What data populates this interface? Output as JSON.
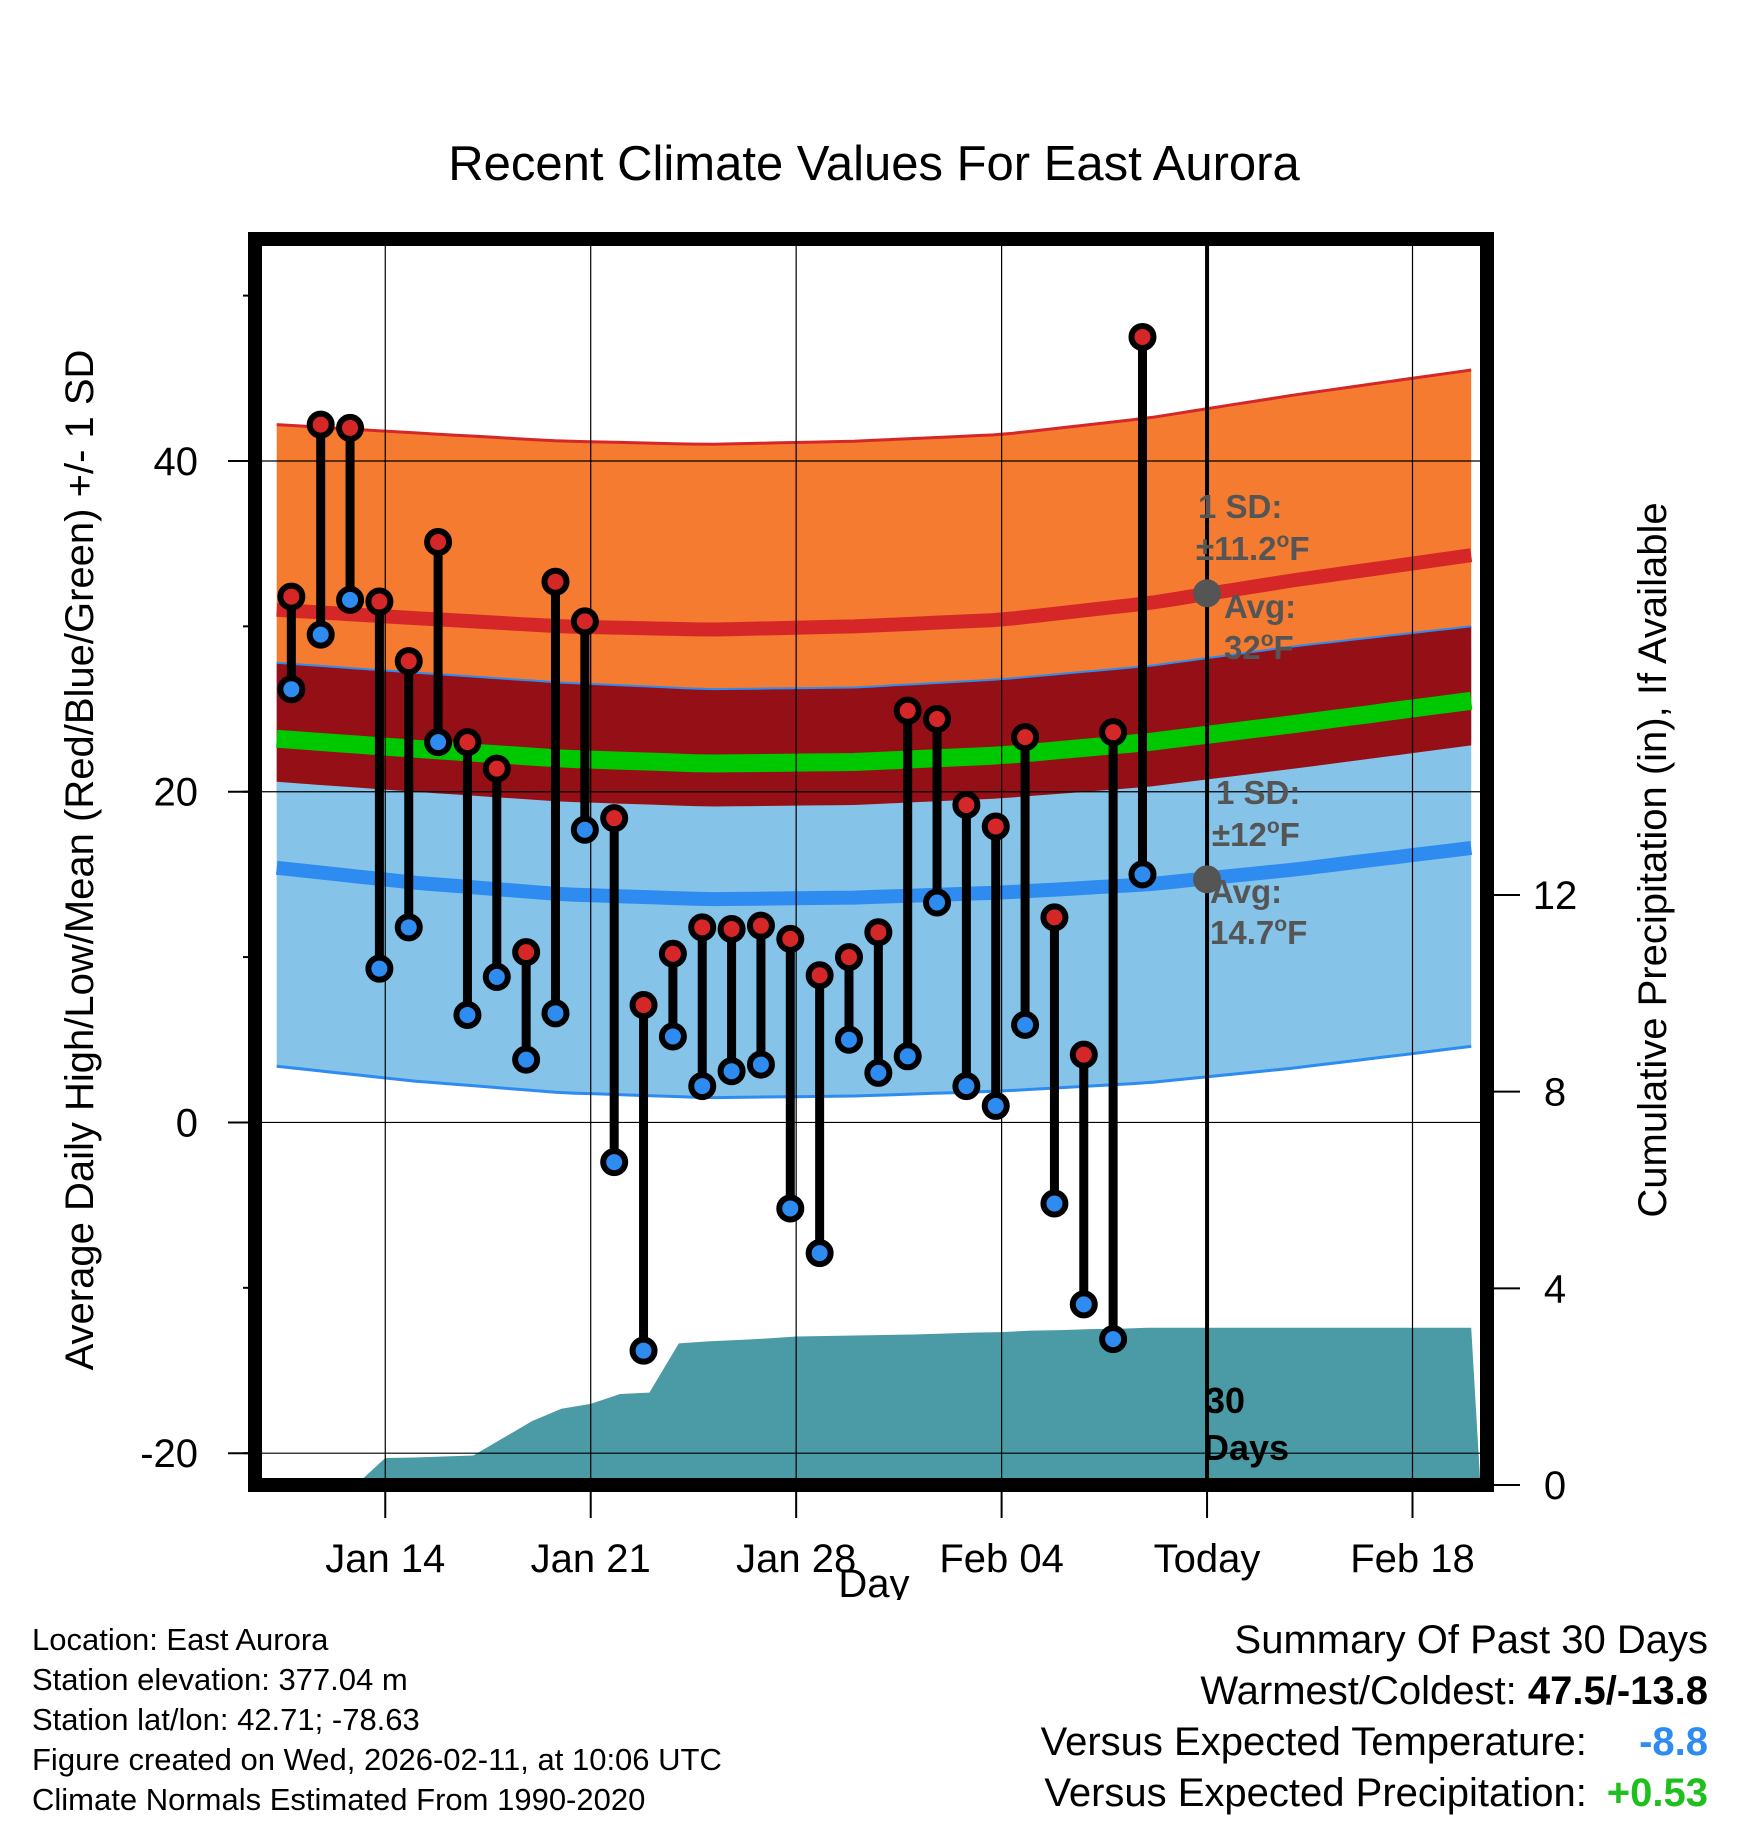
{
  "chart_data": {
    "type": "dumbbell-range",
    "title": "Recent Climate Values For East Aurora",
    "xlabel": "Day",
    "ylabel_left": "Average Daily High/Low/Mean (Red/Blue/Green) +/- 1 SD",
    "ylabel_right": "Cumulative Precipitation (in), If Available",
    "x_ticks": [
      {
        "day": 14,
        "label": "Jan 14"
      },
      {
        "day": 21,
        "label": "Jan 21"
      },
      {
        "day": 28,
        "label": "Jan 28"
      },
      {
        "day": 35,
        "label": "Feb 04"
      },
      {
        "day": 42,
        "label": "Today"
      },
      {
        "day": 49,
        "label": "Feb 18"
      }
    ],
    "xlim": [
      9.8,
      51.3
    ],
    "ylim_left": [
      -21.5,
      53
    ],
    "y_ticks_left": [
      {
        "value": -20,
        "label": "-20"
      },
      {
        "value": 0,
        "label": "0"
      },
      {
        "value": 20,
        "label": "20"
      },
      {
        "value": 40,
        "label": "40"
      }
    ],
    "y_ticks_right": [
      {
        "value": 0,
        "label": "0"
      },
      {
        "value": 4,
        "label": "4"
      },
      {
        "value": 8,
        "label": "8"
      },
      {
        "value": 12,
        "label": "12"
      }
    ],
    "today_day": 42,
    "today_label": [
      "30",
      "Days"
    ],
    "normal_days": [
      10.3,
      15,
      20,
      25,
      30,
      35,
      40,
      45,
      51
    ],
    "normal_high": [
      31.0,
      30.5,
      30.0,
      29.8,
      30.0,
      30.4,
      31.4,
      32.8,
      34.3
    ],
    "high_sd": 11.2,
    "normal_low": [
      15.4,
      14.5,
      13.8,
      13.5,
      13.6,
      13.9,
      14.4,
      15.3,
      16.6
    ],
    "low_sd": 12,
    "normal_mean": [
      23.2,
      22.6,
      22.0,
      21.7,
      21.8,
      22.2,
      23.0,
      24.1,
      25.5
    ],
    "mean_sd_upper": [
      27.8,
      27.2,
      26.6,
      26.2,
      26.3,
      26.8,
      27.6,
      28.8,
      30.0
    ],
    "mean_sd_lower": [
      20.6,
      20.0,
      19.4,
      19.1,
      19.2,
      19.6,
      20.3,
      21.4,
      22.8
    ],
    "series": [
      {
        "name": "Daily High",
        "color": "#d62728",
        "values": [
          31.8,
          42.2,
          42.0,
          31.5,
          27.9,
          35.1,
          23.0,
          21.4,
          10.3,
          32.7,
          30.3,
          18.4,
          7.1,
          10.2,
          11.8,
          11.7,
          11.9,
          11.1,
          8.9,
          10.0,
          11.5,
          24.9,
          24.4,
          19.2,
          17.9,
          23.3,
          12.4,
          4.1,
          23.6,
          47.5
        ]
      },
      {
        "name": "Daily Low",
        "color": "#2e8bef",
        "values": [
          26.2,
          29.5,
          31.6,
          9.3,
          11.8,
          23.0,
          6.5,
          8.8,
          3.8,
          6.6,
          17.7,
          -2.4,
          -13.8,
          5.2,
          2.2,
          3.1,
          3.5,
          -5.2,
          -7.9,
          5.0,
          3.0,
          4.0,
          13.3,
          2.2,
          1.0,
          5.9,
          -4.9,
          -11.0,
          -13.1,
          15.0
        ]
      }
    ],
    "series_days": [
      10.8,
      11.8,
      12.8,
      13.8,
      14.8,
      15.8,
      16.8,
      17.8,
      18.8,
      19.8,
      20.8,
      21.8,
      22.8,
      23.8,
      24.8,
      25.8,
      26.8,
      27.8,
      28.8,
      29.8,
      30.8,
      31.8,
      32.8,
      33.8,
      34.8,
      35.8,
      36.8,
      37.8,
      38.8,
      39.8
    ],
    "precip_days": [
      13,
      14,
      15,
      16,
      17,
      18,
      19,
      20,
      21,
      22,
      23,
      24,
      25,
      26,
      27,
      28,
      29,
      30,
      31,
      32,
      33,
      34,
      35,
      36,
      37,
      38,
      39,
      40,
      41,
      42,
      51
    ],
    "precip_cumulative": [
      0,
      0.55,
      0.56,
      0.58,
      0.6,
      0.95,
      1.3,
      1.55,
      1.65,
      1.85,
      1.88,
      2.88,
      2.92,
      2.95,
      2.98,
      3.02,
      3.03,
      3.04,
      3.05,
      3.06,
      3.08,
      3.1,
      3.11,
      3.14,
      3.15,
      3.17,
      3.18,
      3.2,
      3.2,
      3.2,
      3.2
    ],
    "annotations": {
      "high": {
        "sd_label": "1 SD:",
        "sd_value": "±11.2",
        "avg_label": "Avg:",
        "avg_value": "32",
        "unit": "F",
        "deg": "o",
        "marker_value": 32
      },
      "low": {
        "sd_label": "1 SD:",
        "sd_value": "±12",
        "avg_label": "Avg:",
        "avg_value": "14.7",
        "unit": "F",
        "deg": "o",
        "marker_value": 14.7
      }
    },
    "colors": {
      "high_band": "#f47b30",
      "high_line": "#d62728",
      "mean_band": "#951016",
      "mean_line": "#00c800",
      "low_band": "#85c3e8",
      "low_line": "#2e8bef",
      "precip": "#4a9ba5",
      "marker_gray": "#555555"
    }
  },
  "footer": {
    "location": "Location: East Aurora",
    "elevation": "Station elevation: 377.04 m",
    "latlon": "Station lat/lon: 42.71; -78.63",
    "created": "Figure created on Wed, 2026-02-11, at 10:06 UTC",
    "normals": "Climate Normals Estimated From 1990-2020"
  },
  "summary": {
    "title": "Summary Of Past 30 Days",
    "warm_label": "Warmest/Coldest:",
    "warm_value": "47.5/-13.8",
    "temp_label": "Versus Expected Temperature:",
    "temp_value": "-8.8",
    "temp_color": "#2e8bef",
    "precip_label": "Versus Expected Precipitation:",
    "precip_value": "+0.53",
    "precip_color": "#1fbf1f"
  }
}
